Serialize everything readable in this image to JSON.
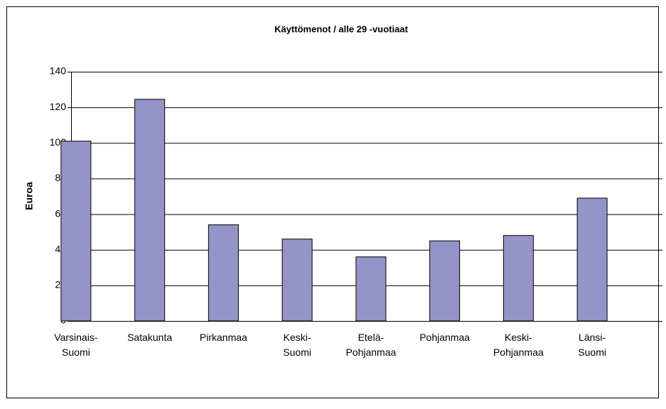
{
  "chart_data": {
    "type": "bar",
    "title": "Käyttömenot / alle 29 -vuotiaat",
    "y_label": "Euroa",
    "categories": [
      "Varsinais-\nSuomi",
      "Satakunta",
      "Pirkanmaa",
      "Keski-\nSuomi",
      "Etelä-\nPohjanmaa",
      "Pohjanmaa",
      "Keski-\nPohjanmaa",
      "Länsi-\nSuomi"
    ],
    "values": [
      101,
      124.5,
      54,
      46,
      36,
      45,
      48,
      69
    ],
    "color": "#9494c8",
    "ylim": [
      0,
      140
    ],
    "yticks": [
      0,
      20,
      40,
      60,
      80,
      100,
      120,
      140
    ],
    "grid": true
  }
}
